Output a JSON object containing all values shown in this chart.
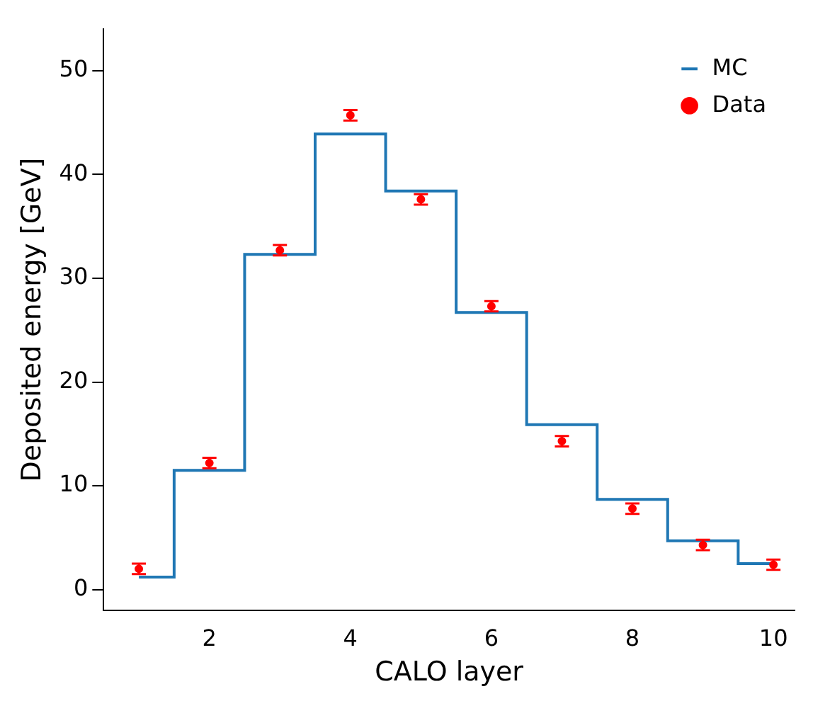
{
  "chart_data": {
    "type": "step",
    "xlabel": "CALO layer",
    "ylabel": "Deposited energy [GeV]",
    "x": [
      1,
      2,
      3,
      4,
      5,
      6,
      7,
      8,
      9,
      10
    ],
    "xlim": [
      0.5,
      10.3
    ],
    "xticks": [
      2,
      4,
      6,
      8,
      10
    ],
    "ylim": [
      -2,
      54
    ],
    "yticks": [
      0,
      10,
      20,
      30,
      40,
      50
    ],
    "legend": "top right",
    "grid": false,
    "series": [
      {
        "name": "MC",
        "color": "#1f77b4",
        "values": [
          1.2,
          11.5,
          32.3,
          43.9,
          38.4,
          26.7,
          15.9,
          8.7,
          4.7,
          2.5
        ]
      },
      {
        "name": "Data",
        "type": "scatter",
        "color": "#ff0000",
        "marker": "circle",
        "values": [
          2.0,
          12.2,
          32.7,
          45.7,
          37.6,
          27.3,
          14.3,
          7.8,
          4.3,
          2.4
        ],
        "errors": [
          0.5,
          0.5,
          0.5,
          0.5,
          0.5,
          0.5,
          0.5,
          0.5,
          0.5,
          0.5
        ]
      }
    ]
  }
}
